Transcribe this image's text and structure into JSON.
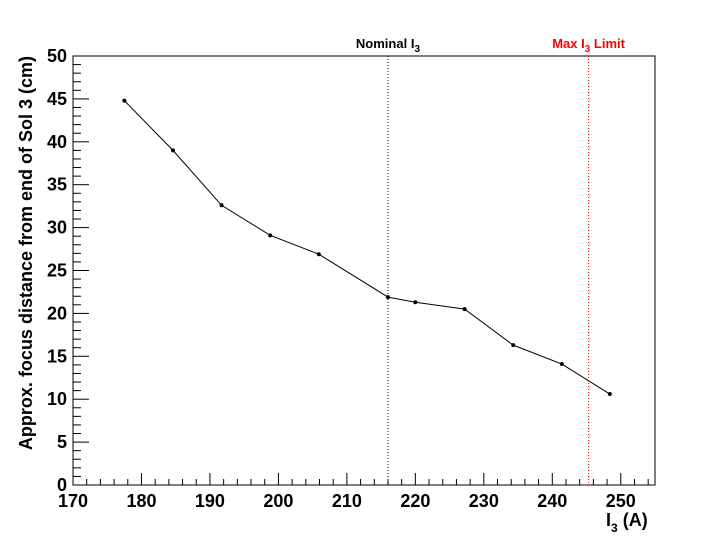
{
  "chart_data": {
    "type": "line",
    "title": "",
    "xlabel": {
      "main": "I",
      "sub": "3",
      "rest": " (A)"
    },
    "ylabel": "Approx. focus distance from end of Sol 3 (cm)",
    "xlim": [
      170,
      255
    ],
    "ylim": [
      0,
      50
    ],
    "x_ticks": [
      170,
      180,
      190,
      200,
      210,
      220,
      230,
      240,
      250
    ],
    "y_ticks": [
      0,
      5,
      10,
      15,
      20,
      25,
      30,
      35,
      40,
      45,
      50
    ],
    "series": [
      {
        "x": [
          177.5,
          184.6,
          191.7,
          198.8,
          205.9,
          216.0,
          220.0,
          227.2,
          234.3,
          241.4,
          248.4
        ],
        "y": [
          44.8,
          39.0,
          32.6,
          29.1,
          26.9,
          21.9,
          21.3,
          20.5,
          16.3,
          14.1,
          10.6
        ],
        "color": "#000000"
      }
    ],
    "annotations": [
      {
        "x": 216.0,
        "label_main": "Nominal I",
        "label_sub": "3",
        "label_rest": "",
        "color": "#000000",
        "style": "dotted"
      },
      {
        "x": 245.3,
        "label_main": "Max I",
        "label_sub": "3",
        "label_rest": " Limit",
        "color": "#ff0000",
        "style": "dotted"
      }
    ],
    "grid": false,
    "legend": "none"
  }
}
